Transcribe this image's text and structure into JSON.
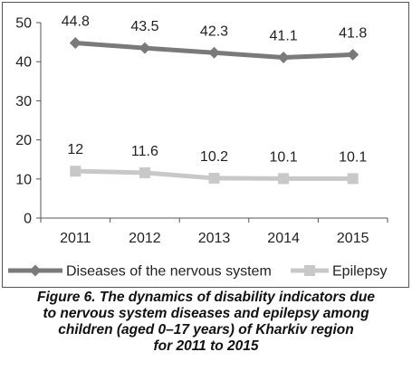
{
  "chart_data": {
    "type": "line",
    "categories": [
      "2011",
      "2012",
      "2013",
      "2014",
      "2015"
    ],
    "series": [
      {
        "name": "Diseases of the nervous system",
        "values": [
          44.8,
          43.5,
          42.3,
          41.1,
          41.8
        ],
        "labels": [
          "44.8",
          "43.5",
          "42.3",
          "41.1",
          "41.8"
        ],
        "color": "#7a7a7a",
        "marker": "diamond"
      },
      {
        "name": "Epilepsy",
        "values": [
          12,
          11.6,
          10.2,
          10.1,
          10.1
        ],
        "labels": [
          "12",
          "11.6",
          "10.2",
          "10.1",
          "10.1"
        ],
        "color": "#c8c8c8",
        "marker": "square"
      }
    ],
    "yticks": [
      "0",
      "10",
      "20",
      "30",
      "40",
      "50"
    ],
    "ylim": [
      0,
      50
    ],
    "grid": false,
    "legend_position": "bottom"
  },
  "caption": {
    "lines": [
      "Figure 6. The dynamics of disability indicators due",
      "to nervous system diseases and epilepsy among",
      "children (aged 0–17 years) of Kharkiv region",
      "for 2011 to 2015"
    ]
  }
}
